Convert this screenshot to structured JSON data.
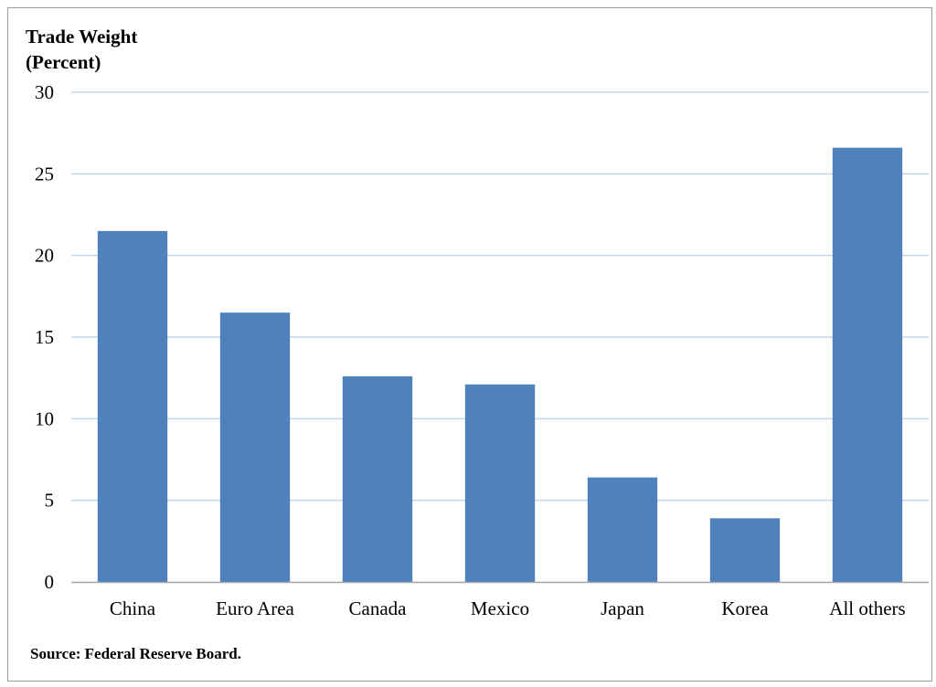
{
  "chart_data": {
    "type": "bar",
    "ylabel_lines": [
      "Trade Weight",
      "(Percent)"
    ],
    "categories": [
      "China",
      "Euro Area",
      "Canada",
      "Mexico",
      "Japan",
      "Korea",
      "All others"
    ],
    "values": [
      21.5,
      16.5,
      12.6,
      12.1,
      6.4,
      3.9,
      26.6
    ],
    "ylim": [
      0,
      30
    ],
    "yticks": [
      0,
      5,
      10,
      15,
      20,
      25,
      30
    ],
    "grid": true,
    "bar_color": "#4f81bd",
    "grid_color": "#c5d5ea",
    "legend": "none",
    "source": "Source: Federal Reserve Board."
  }
}
